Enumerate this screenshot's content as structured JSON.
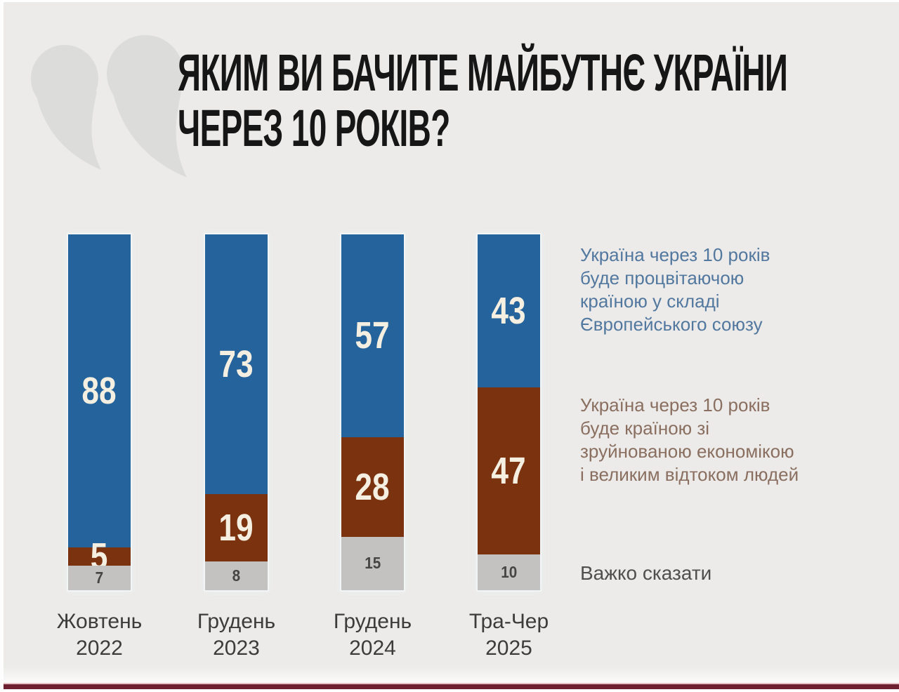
{
  "page": {
    "background": "#ecebe9",
    "title_color": "#161616",
    "accent_line_color": "#6e2033",
    "quote_mark_color": "#dcdcda"
  },
  "title": {
    "lines": [
      "ЯКИМ ВИ БАЧИТЕ МАЙБУТНЄ УКРАЇНИ",
      "ЧЕРЕЗ 10 РОКІВ?"
    ]
  },
  "chart_data": {
    "type": "bar",
    "stacked": true,
    "unit": "percent",
    "ylim": [
      0,
      100
    ],
    "grid": false,
    "legend_position": "right",
    "title": "ЯКИМ ВИ БАЧИТЕ МАЙБУТНЄ УКРАЇНИ ЧЕРЕЗ 10 РОКІВ?",
    "categories": [
      [
        "Жовтень",
        "2022"
      ],
      [
        "Грудень",
        "2023"
      ],
      [
        "Грудень",
        "2024"
      ],
      [
        "Тра-Чер",
        "2025"
      ]
    ],
    "series": [
      {
        "name": "Україна через 10 років буде процвітаючою країною у складі Європейського союзу",
        "color": "#25639c",
        "values": [
          88,
          73,
          57,
          43
        ]
      },
      {
        "name": "Україна через 10 років буде країною зі зруйнованою економікою і великим відтоком людей",
        "color": "#7b320f",
        "values": [
          5,
          19,
          28,
          47
        ]
      },
      {
        "name": "Важко сказати",
        "color": "#c3c2c0",
        "values": [
          7,
          8,
          15,
          10
        ]
      }
    ],
    "value_label_colors": {
      "big": "#f5efe1",
      "small": "#454543"
    }
  },
  "legend": {
    "eu": {
      "lines": [
        "Україна через 10 років",
        "буде процвітаючою",
        "країною у складі",
        "Європейського союзу"
      ],
      "color": "#52789f"
    },
    "ruined": {
      "lines": [
        "Україна через 10 років",
        "буде країною зі",
        "зруйнованою економікою",
        "і великим відтоком людей"
      ],
      "color": "#8a6f60"
    },
    "hard_to_say": {
      "lines": [
        "Важко сказати"
      ],
      "color": "#4f4f4d"
    }
  }
}
